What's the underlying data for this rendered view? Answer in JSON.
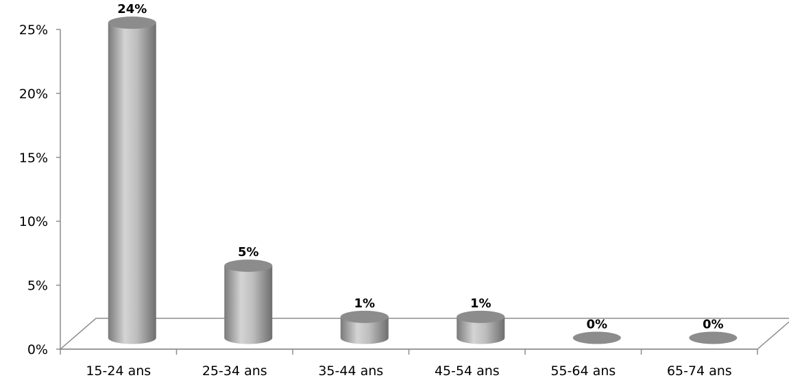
{
  "chart_data": {
    "type": "bar",
    "categories": [
      "15-24 ans",
      "25-34 ans",
      "35-44 ans",
      "45-54 ans",
      "55-64 ans",
      "65-74 ans"
    ],
    "values": [
      24,
      5,
      1,
      1,
      0,
      0
    ],
    "data_labels": [
      "24%",
      "5%",
      "1%",
      "1%",
      "0%",
      "0%"
    ],
    "y_ticks": [
      "0%",
      "5%",
      "10%",
      "15%",
      "20%",
      "25%"
    ],
    "ylim": [
      0,
      25
    ],
    "y_unit": "%",
    "grid": false,
    "style": "3d-cylinder",
    "colors": {
      "bar": "#a6a6a6",
      "bar_top": "#8c8c8c",
      "axis": "#8c8c8c"
    }
  }
}
